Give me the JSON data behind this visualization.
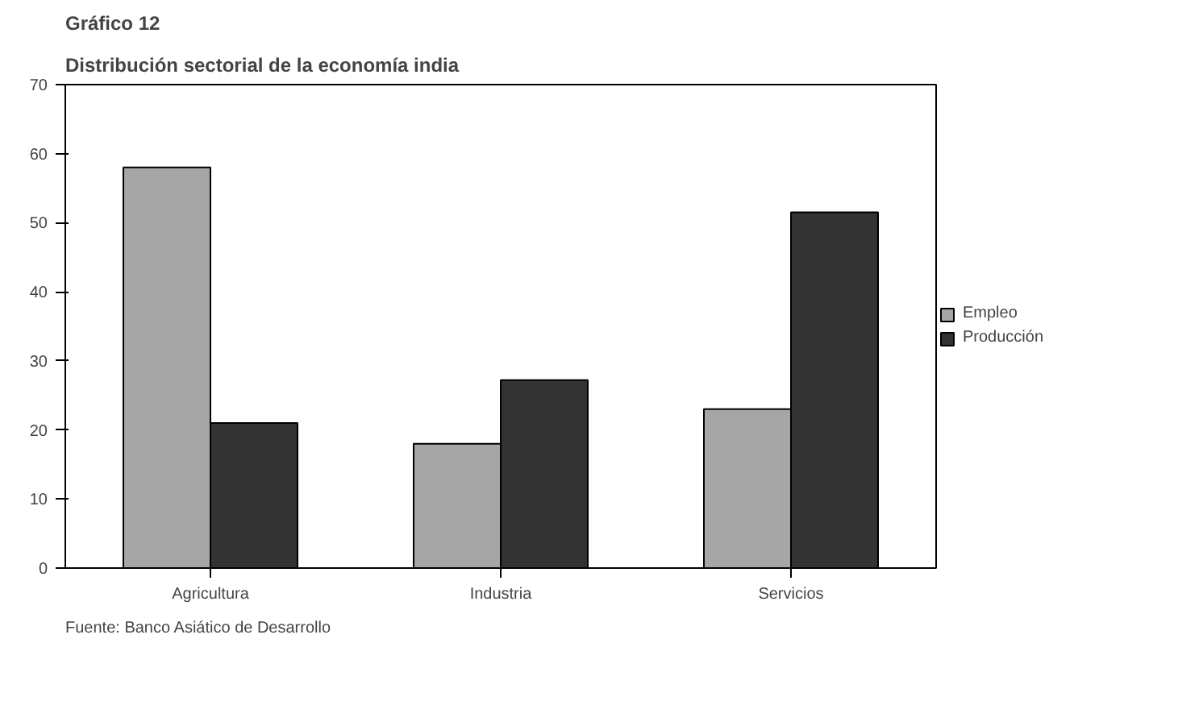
{
  "chart_data": {
    "type": "bar",
    "title": "Gráfico 12",
    "subtitle": "Distribución sectorial de la economía india",
    "categories": [
      "Agricultura",
      "Industria",
      "Servicios"
    ],
    "series": [
      {
        "name": "Empleo",
        "color": "#a6a6a6",
        "values": [
          58,
          18,
          23
        ]
      },
      {
        "name": "Producción",
        "color": "#333333",
        "values": [
          21,
          27.2,
          51.5
        ]
      }
    ],
    "ylim": [
      0,
      70
    ],
    "yticks": [
      0,
      10,
      20,
      30,
      40,
      50,
      60,
      70
    ],
    "grid": false,
    "legend": "right",
    "annotations": [
      "Fuente: Banco Asiático de Desarrollo"
    ]
  }
}
